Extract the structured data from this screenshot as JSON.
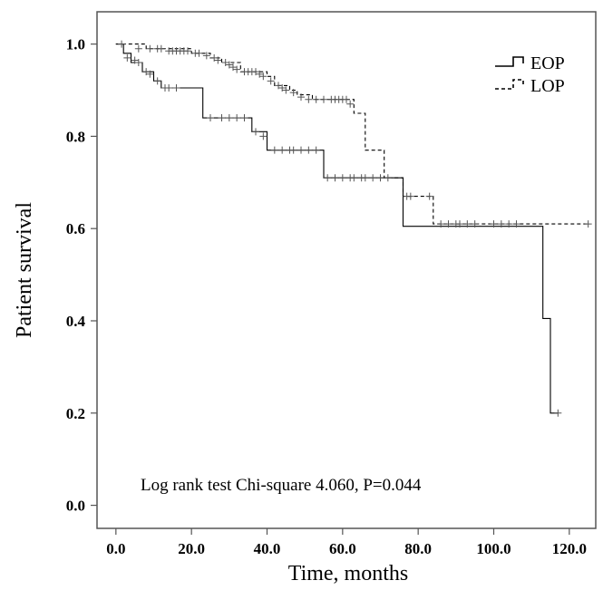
{
  "chart_data": {
    "type": "line",
    "title": "",
    "xlabel": "Time, months",
    "ylabel": "Patient survival",
    "xlim": [
      -5,
      127
    ],
    "ylim": [
      -0.05,
      1.07
    ],
    "x_ticks": [
      0,
      20,
      40,
      60,
      80,
      100,
      120
    ],
    "x_tick_labels": [
      "0.0",
      "20.0",
      "40.0",
      "60.0",
      "80.0",
      "100.0",
      "120.0"
    ],
    "y_ticks": [
      0,
      0.2,
      0.4,
      0.6,
      0.8,
      1.0
    ],
    "y_tick_labels": [
      "0.0",
      "0.2",
      "0.4",
      "0.6",
      "0.8",
      "1.0"
    ],
    "legend_position": "top-right",
    "annotation": "Log rank test Chi-square 4.060, P=0.044",
    "series": [
      {
        "name": "EOP",
        "dash": "solid",
        "steps": [
          [
            0,
            1.0
          ],
          [
            2,
            0.98
          ],
          [
            4,
            0.96
          ],
          [
            7,
            0.94
          ],
          [
            10,
            0.92
          ],
          [
            12,
            0.905
          ],
          [
            23,
            0.84
          ],
          [
            36,
            0.81
          ],
          [
            40,
            0.77
          ],
          [
            55,
            0.71
          ],
          [
            76,
            0.605
          ],
          [
            113,
            0.405
          ],
          [
            115,
            0.2
          ],
          [
            117,
            0.2
          ]
        ],
        "censored": [
          [
            1.5,
            1.0
          ],
          [
            3,
            0.97
          ],
          [
            5,
            0.965
          ],
          [
            6,
            0.96
          ],
          [
            8,
            0.94
          ],
          [
            9,
            0.935
          ],
          [
            11,
            0.92
          ],
          [
            13,
            0.905
          ],
          [
            14,
            0.905
          ],
          [
            16,
            0.905
          ],
          [
            25,
            0.84
          ],
          [
            28,
            0.84
          ],
          [
            30,
            0.84
          ],
          [
            32,
            0.84
          ],
          [
            34,
            0.84
          ],
          [
            37,
            0.81
          ],
          [
            39,
            0.8
          ],
          [
            42,
            0.77
          ],
          [
            44,
            0.77
          ],
          [
            46,
            0.77
          ],
          [
            47,
            0.77
          ],
          [
            49,
            0.77
          ],
          [
            51,
            0.77
          ],
          [
            53,
            0.77
          ],
          [
            56,
            0.71
          ],
          [
            58,
            0.71
          ],
          [
            60,
            0.71
          ],
          [
            62,
            0.71
          ],
          [
            63,
            0.71
          ],
          [
            65,
            0.71
          ],
          [
            66,
            0.71
          ],
          [
            68,
            0.71
          ],
          [
            70,
            0.71
          ],
          [
            72,
            0.71
          ],
          [
            117,
            0.2
          ]
        ]
      },
      {
        "name": "LOP",
        "dash": "dashed",
        "steps": [
          [
            0,
            1.0
          ],
          [
            8,
            0.99
          ],
          [
            20,
            0.98
          ],
          [
            25,
            0.97
          ],
          [
            28,
            0.96
          ],
          [
            33,
            0.94
          ],
          [
            40,
            0.93
          ],
          [
            42,
            0.91
          ],
          [
            46,
            0.9
          ],
          [
            48,
            0.89
          ],
          [
            52,
            0.88
          ],
          [
            63,
            0.85
          ],
          [
            66,
            0.77
          ],
          [
            71,
            0.71
          ],
          [
            76,
            0.67
          ],
          [
            84,
            0.61
          ],
          [
            125,
            0.61
          ]
        ],
        "censored": [
          [
            6,
            0.99
          ],
          [
            9,
            0.99
          ],
          [
            11,
            0.99
          ],
          [
            12,
            0.99
          ],
          [
            14,
            0.985
          ],
          [
            15,
            0.985
          ],
          [
            16,
            0.985
          ],
          [
            17,
            0.985
          ],
          [
            18,
            0.985
          ],
          [
            19,
            0.985
          ],
          [
            21,
            0.98
          ],
          [
            22,
            0.98
          ],
          [
            24,
            0.975
          ],
          [
            26,
            0.97
          ],
          [
            27,
            0.965
          ],
          [
            29,
            0.96
          ],
          [
            30,
            0.955
          ],
          [
            31,
            0.95
          ],
          [
            32,
            0.945
          ],
          [
            34,
            0.94
          ],
          [
            35,
            0.94
          ],
          [
            36,
            0.94
          ],
          [
            37,
            0.94
          ],
          [
            38,
            0.935
          ],
          [
            39,
            0.93
          ],
          [
            41,
            0.92
          ],
          [
            43,
            0.91
          ],
          [
            44,
            0.905
          ],
          [
            45,
            0.9
          ],
          [
            47,
            0.895
          ],
          [
            49,
            0.885
          ],
          [
            51,
            0.88
          ],
          [
            53,
            0.88
          ],
          [
            55,
            0.88
          ],
          [
            57,
            0.88
          ],
          [
            58,
            0.88
          ],
          [
            59,
            0.88
          ],
          [
            60,
            0.88
          ],
          [
            61,
            0.88
          ],
          [
            62,
            0.87
          ],
          [
            77,
            0.67
          ],
          [
            78,
            0.67
          ],
          [
            83,
            0.67
          ],
          [
            86,
            0.61
          ],
          [
            88,
            0.61
          ],
          [
            90,
            0.61
          ],
          [
            91,
            0.61
          ],
          [
            93,
            0.61
          ],
          [
            95,
            0.61
          ],
          [
            100,
            0.61
          ],
          [
            102,
            0.61
          ],
          [
            104,
            0.61
          ],
          [
            106,
            0.61
          ],
          [
            125,
            0.61
          ]
        ]
      }
    ]
  }
}
